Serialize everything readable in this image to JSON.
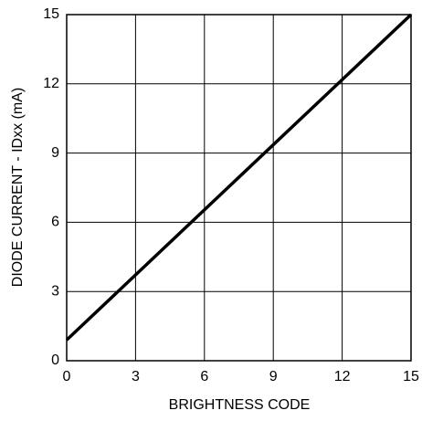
{
  "chart_data": {
    "type": "line",
    "x_label": "BRIGHTNESS CODE",
    "y_label": "DIODE CURRENT - IDxx (mA)",
    "series": [
      {
        "x": [
          0,
          15
        ],
        "values": [
          0.9,
          15
        ],
        "color": "#000000"
      }
    ],
    "xlim": [
      0,
      15
    ],
    "xticks": [
      0,
      3,
      6,
      9,
      12,
      15
    ],
    "ylim": [
      0,
      15
    ],
    "yticks": [
      0,
      3,
      6,
      9,
      12,
      15
    ],
    "grid": true
  }
}
